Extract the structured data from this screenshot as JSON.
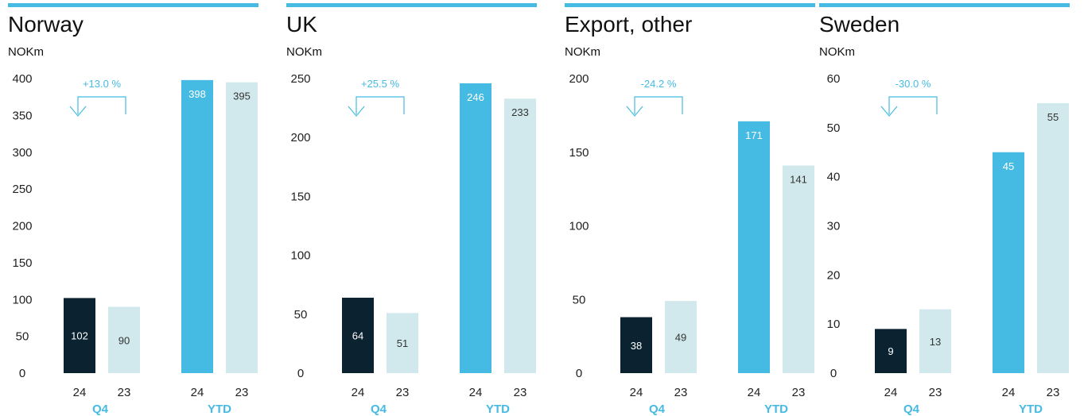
{
  "colors": {
    "accent": "#45BBE3",
    "q4_current": "#0B2230",
    "ytd_current": "#45BBE3",
    "previous": "#D1E9ED",
    "text": "#111111",
    "label_light": "#ffffff",
    "label_dark": "#333333"
  },
  "chart_data": [
    {
      "type": "bar",
      "title": "Norway",
      "unit": "NOKm",
      "ylim": [
        0,
        400
      ],
      "yticks": [
        0,
        50,
        100,
        150,
        200,
        250,
        300,
        350,
        400
      ],
      "groups": [
        "Q4",
        "YTD"
      ],
      "categories": [
        "24",
        "23",
        "24",
        "23"
      ],
      "values": [
        102,
        90,
        398,
        395
      ],
      "change_label": "+13.0 %",
      "grid": false
    },
    {
      "type": "bar",
      "title": "UK",
      "unit": "NOKm",
      "ylim": [
        0,
        250
      ],
      "yticks": [
        0,
        50,
        100,
        150,
        200,
        250
      ],
      "groups": [
        "Q4",
        "YTD"
      ],
      "categories": [
        "24",
        "23",
        "24",
        "23"
      ],
      "values": [
        64,
        51,
        246,
        233
      ],
      "change_label": "+25.5 %",
      "grid": false
    },
    {
      "type": "bar",
      "title": "Export, other",
      "unit": "NOKm",
      "ylim": [
        0,
        200
      ],
      "yticks": [
        0,
        50,
        100,
        150,
        200
      ],
      "groups": [
        "Q4",
        "YTD"
      ],
      "categories": [
        "24",
        "23",
        "24",
        "23"
      ],
      "values": [
        38,
        49,
        171,
        141
      ],
      "change_label": "-24.2 %",
      "grid": false
    },
    {
      "type": "bar",
      "title": "Sweden",
      "unit": "NOKm",
      "ylim": [
        0,
        60
      ],
      "yticks": [
        0,
        10,
        20,
        30,
        40,
        50,
        60
      ],
      "groups": [
        "Q4",
        "YTD"
      ],
      "categories": [
        "24",
        "23",
        "24",
        "23"
      ],
      "values": [
        9,
        13,
        45,
        55
      ],
      "change_label": "-30.0 %",
      "grid": false
    }
  ]
}
